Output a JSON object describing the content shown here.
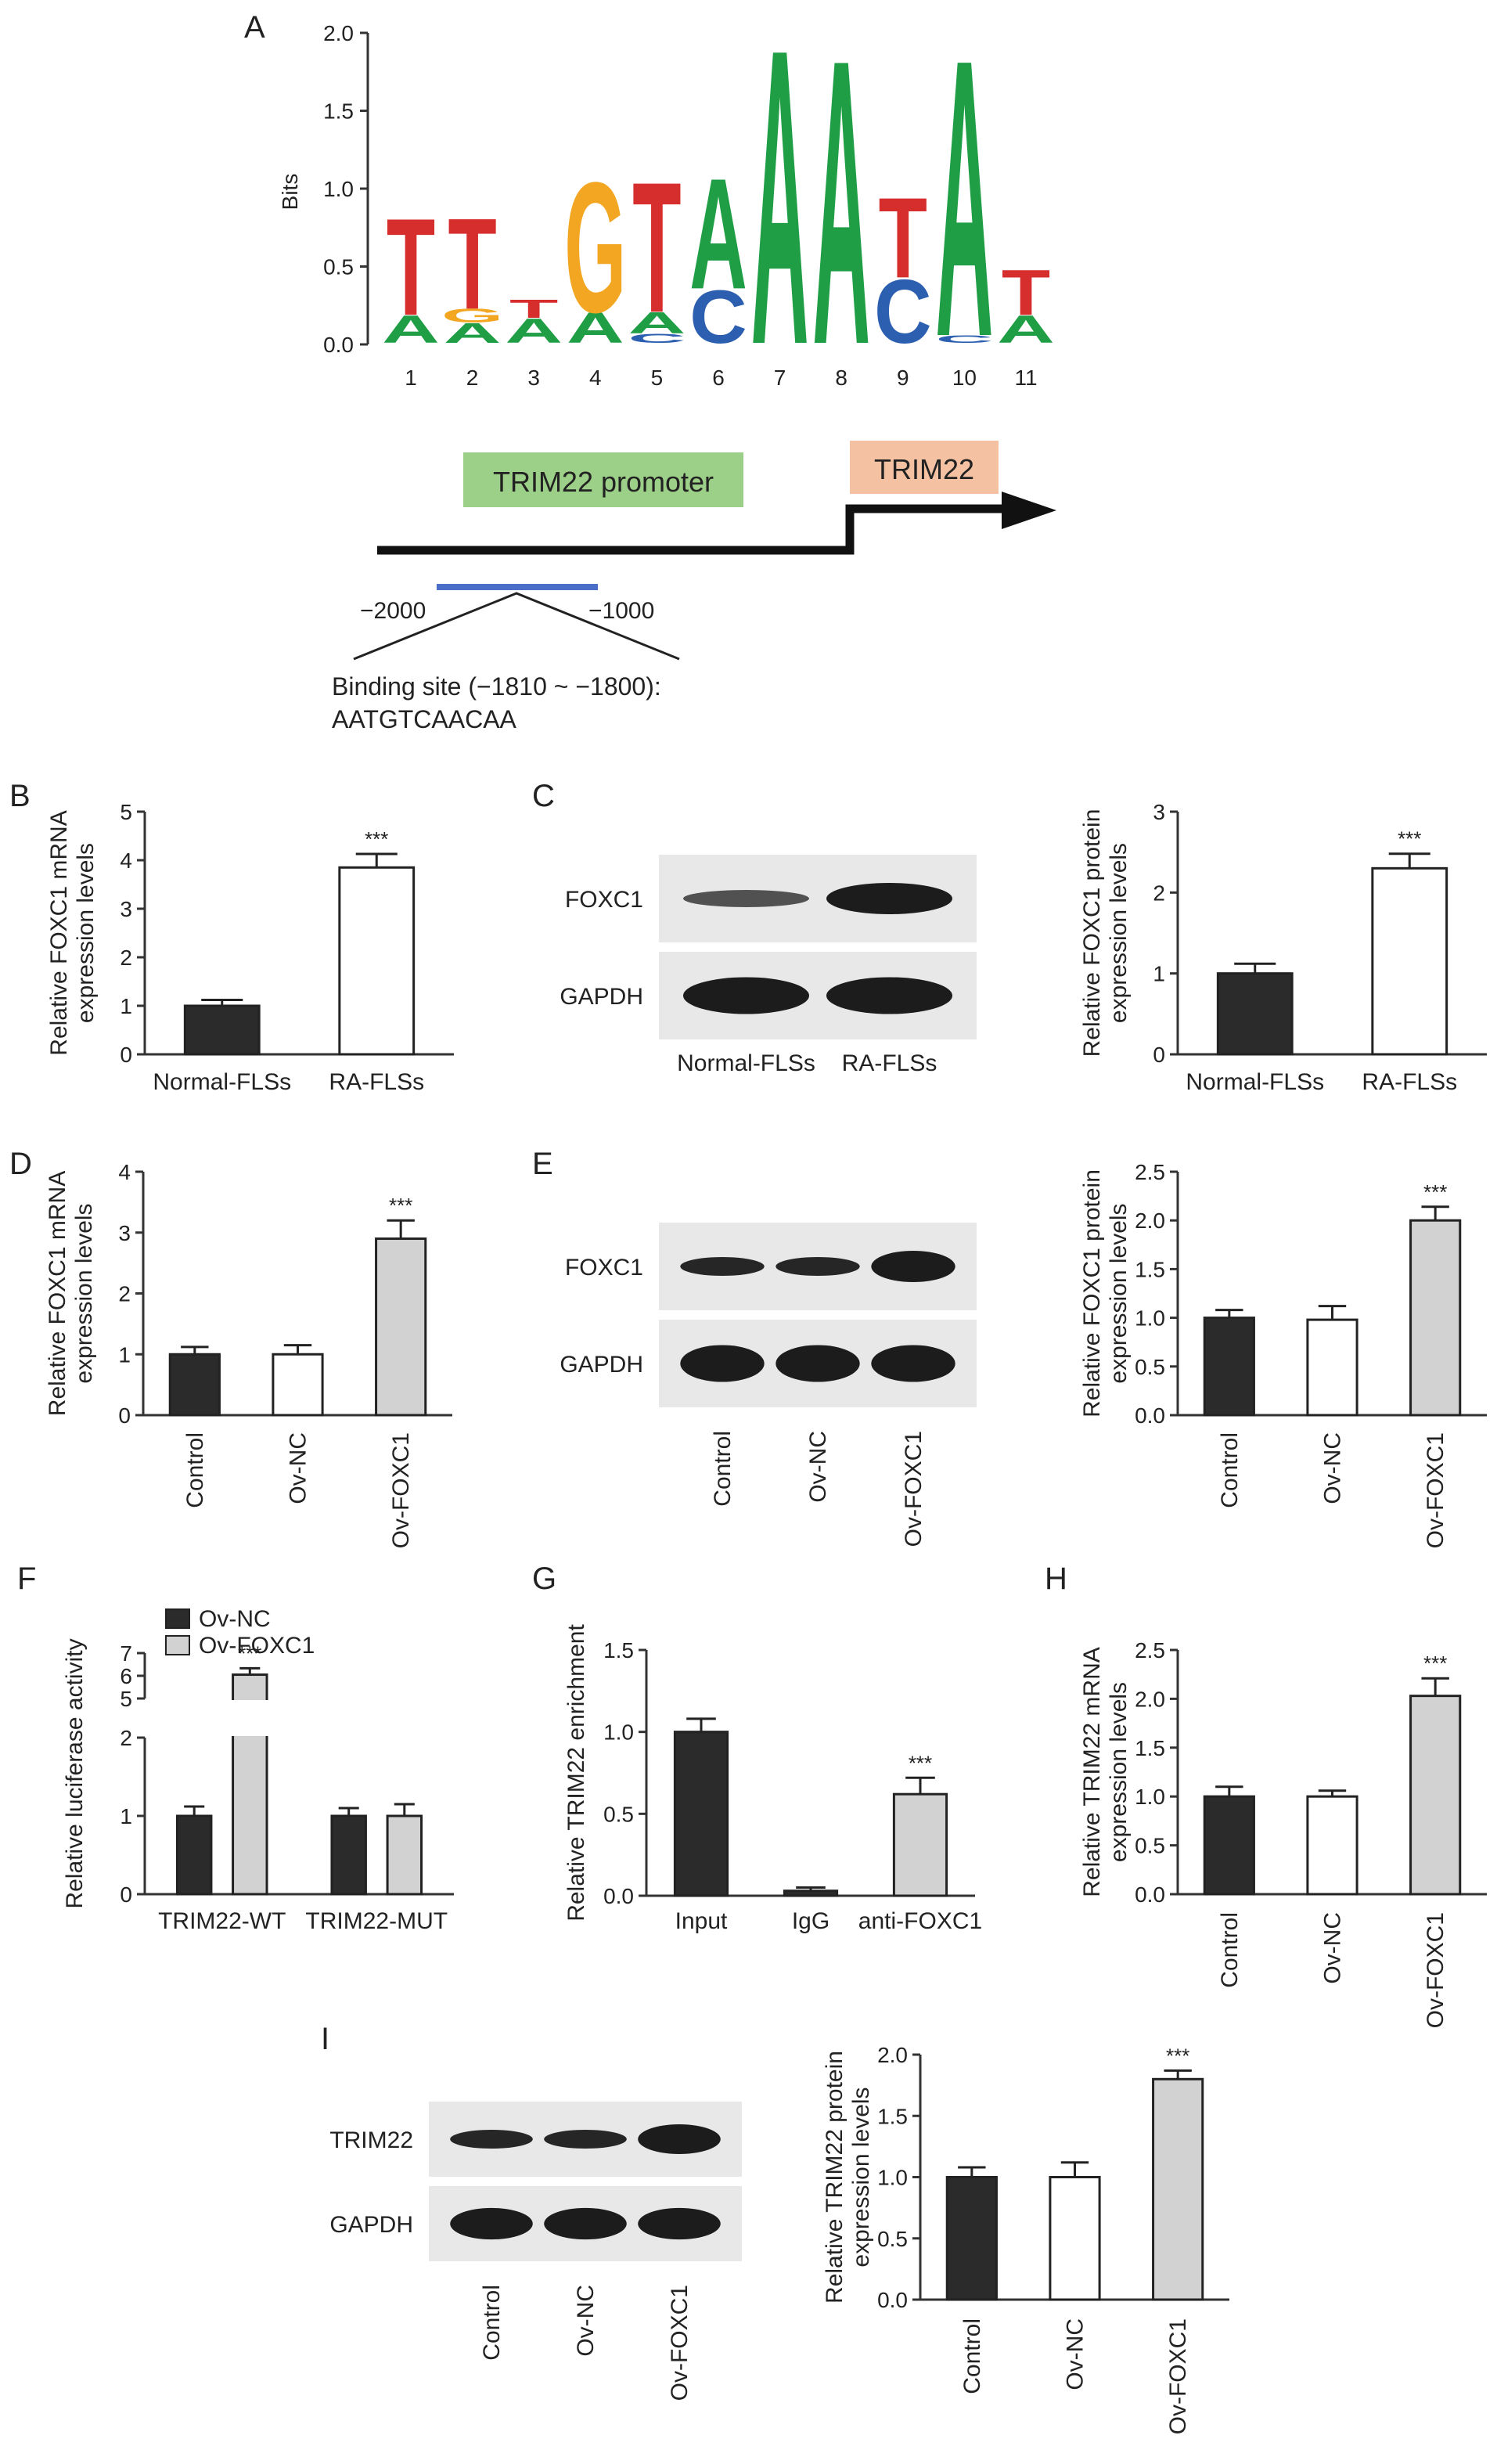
{
  "figure": {
    "panel_letters": [
      "A",
      "B",
      "C",
      "D",
      "E",
      "F",
      "G",
      "H",
      "I"
    ]
  },
  "colors": {
    "dark_bar": "#2b2b2b",
    "white_bar": "#ffffff",
    "gray_bar": "#d2d2d2",
    "logo_A": "#1f9e45",
    "logo_C": "#2d5fb0",
    "logo_G": "#f2a622",
    "logo_T": "#d62d2d",
    "promoter_box": "#9ccf87",
    "gene_box": "#f4c2a2",
    "binding_line": "#4a6fc9"
  },
  "panelA": {
    "ylabel": "Bits",
    "yticks": [
      "0.0",
      "0.5",
      "1.0",
      "1.5",
      "2.0"
    ],
    "positions": [
      "1",
      "2",
      "3",
      "4",
      "5",
      "6",
      "7",
      "8",
      "9",
      "10",
      "11"
    ],
    "promoter_label": "TRIM22 promoter",
    "gene_label": "TRIM22",
    "pos_left": "−2000",
    "pos_right": "−1000",
    "binding_text_1": "Binding site (−1810 ~ −1800):",
    "binding_text_2": "AATGTCAACAA"
  },
  "blots": {
    "C": {
      "bands": [
        "FOXC1",
        "GAPDH"
      ],
      "lanes": [
        "Normal-FLSs",
        "RA-FLSs"
      ]
    },
    "E": {
      "bands": [
        "FOXC1",
        "GAPDH"
      ],
      "lanes": [
        "Control",
        "Ov-NC",
        "Ov-FOXC1"
      ]
    },
    "I": {
      "bands": [
        "TRIM22",
        "GAPDH"
      ],
      "lanes": [
        "Control",
        "Ov-NC",
        "Ov-FOXC1"
      ]
    }
  },
  "chart_data": [
    {
      "id": "B",
      "type": "bar",
      "categories": [
        "Normal-FLSs",
        "RA-FLSs"
      ],
      "values": [
        1.0,
        3.85
      ],
      "errors": [
        0.12,
        0.28
      ],
      "colors": [
        "dark",
        "white"
      ],
      "sig": [
        null,
        "***"
      ],
      "ylabel": [
        "Relative FOXC1 mRNA",
        "expression levels"
      ],
      "ylim": [
        0,
        5
      ],
      "yticks": [
        "0",
        "1",
        "2",
        "3",
        "4",
        "5"
      ],
      "rotate_labels": false
    },
    {
      "id": "C",
      "type": "bar",
      "categories": [
        "Normal-FLSs",
        "RA-FLSs"
      ],
      "values": [
        1.0,
        2.3
      ],
      "errors": [
        0.12,
        0.18
      ],
      "colors": [
        "dark",
        "white"
      ],
      "sig": [
        null,
        "***"
      ],
      "ylabel": [
        "Relative FOXC1 protein",
        "expression levels"
      ],
      "ylim": [
        0,
        3
      ],
      "yticks": [
        "0",
        "1",
        "2",
        "3"
      ],
      "rotate_labels": false
    },
    {
      "id": "D",
      "type": "bar",
      "categories": [
        "Control",
        "Ov-NC",
        "Ov-FOXC1"
      ],
      "values": [
        1.0,
        1.0,
        2.9
      ],
      "errors": [
        0.12,
        0.15,
        0.3
      ],
      "colors": [
        "dark",
        "white",
        "gray"
      ],
      "sig": [
        null,
        null,
        "***"
      ],
      "ylabel": [
        "Relative FOXC1 mRNA",
        "expression levels"
      ],
      "ylim": [
        0,
        4
      ],
      "yticks": [
        "0",
        "1",
        "2",
        "3",
        "4"
      ],
      "rotate_labels": true
    },
    {
      "id": "E",
      "type": "bar",
      "categories": [
        "Control",
        "Ov-NC",
        "Ov-FOXC1"
      ],
      "values": [
        1.0,
        0.98,
        2.0
      ],
      "errors": [
        0.08,
        0.14,
        0.14
      ],
      "colors": [
        "dark",
        "white",
        "gray"
      ],
      "sig": [
        null,
        null,
        "***"
      ],
      "ylabel": [
        "Relative FOXC1 protein",
        "expression levels"
      ],
      "ylim": [
        0,
        2.5
      ],
      "yticks": [
        "0.0",
        "0.5",
        "1.0",
        "1.5",
        "2.0",
        "2.5"
      ],
      "rotate_labels": true
    },
    {
      "id": "F",
      "type": "bar",
      "categories": [
        "TRIM22-WT",
        "TRIM22-MUT"
      ],
      "series": [
        {
          "name": "Ov-NC",
          "values": [
            1.0,
            1.0
          ],
          "errors": [
            0.12,
            0.1
          ],
          "color": "dark"
        },
        {
          "name": "Ov-FOXC1",
          "values": [
            6.05,
            1.0
          ],
          "errors": [
            0.28,
            0.15
          ],
          "color": "gray"
        }
      ],
      "sig": [
        [
          null,
          "***"
        ],
        [
          null,
          null
        ]
      ],
      "ylabel": [
        "Relative luciferase activity"
      ],
      "yticks": [
        "0",
        "1",
        "2",
        "5",
        "6",
        "7"
      ],
      "axis_break": true,
      "rotate_labels": false
    },
    {
      "id": "G",
      "type": "bar",
      "categories": [
        "Input",
        "IgG",
        "anti-FOXC1"
      ],
      "values": [
        1.0,
        0.03,
        0.62
      ],
      "errors": [
        0.08,
        0.02,
        0.1
      ],
      "colors": [
        "dark",
        "dark",
        "gray"
      ],
      "sig": [
        null,
        null,
        "***"
      ],
      "ylabel": [
        "Relative TRIM22 enrichment"
      ],
      "ylim": [
        0,
        1.5
      ],
      "yticks": [
        "0.0",
        "0.5",
        "1.0",
        "1.5"
      ],
      "rotate_labels": false
    },
    {
      "id": "H",
      "type": "bar",
      "categories": [
        "Control",
        "Ov-NC",
        "Ov-FOXC1"
      ],
      "values": [
        1.0,
        1.0,
        2.03
      ],
      "errors": [
        0.1,
        0.06,
        0.18
      ],
      "colors": [
        "dark",
        "white",
        "gray"
      ],
      "sig": [
        null,
        null,
        "***"
      ],
      "ylabel": [
        "Relative TRIM22 mRNA",
        "expression levels"
      ],
      "ylim": [
        0,
        2.5
      ],
      "yticks": [
        "0.0",
        "0.5",
        "1.0",
        "1.5",
        "2.0",
        "2.5"
      ],
      "rotate_labels": true
    },
    {
      "id": "I",
      "type": "bar",
      "categories": [
        "Control",
        "Ov-NC",
        "Ov-FOXC1"
      ],
      "values": [
        1.0,
        1.0,
        1.8
      ],
      "errors": [
        0.08,
        0.12,
        0.07
      ],
      "colors": [
        "dark",
        "white",
        "gray"
      ],
      "sig": [
        null,
        null,
        "***"
      ],
      "ylabel": [
        "Relative TRIM22 protein",
        "expression levels"
      ],
      "ylim": [
        0,
        2.0
      ],
      "yticks": [
        "0.0",
        "0.5",
        "1.0",
        "1.5",
        "2.0"
      ],
      "rotate_labels": true
    }
  ]
}
